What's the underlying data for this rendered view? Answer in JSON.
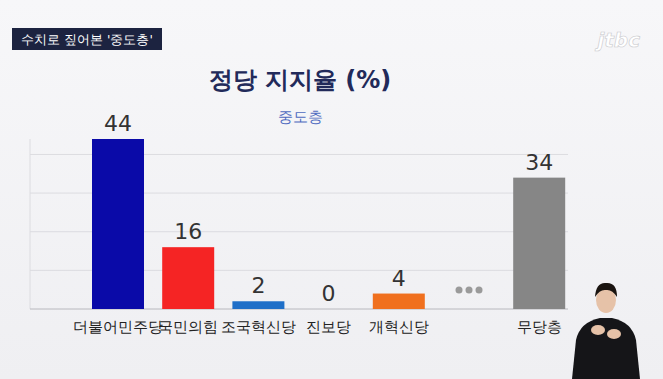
{
  "header": "수치로 짚어본 '중도층'",
  "logo": "jtbc",
  "chart_data": {
    "type": "bar",
    "title": "정당 지지율 (%)",
    "subtitle": "중도층",
    "categories": [
      "더불어민주당",
      "국민의힘",
      "조국혁신당",
      "진보당",
      "개혁신당",
      null,
      "무당층"
    ],
    "values": [
      44,
      16,
      2,
      0,
      4,
      null,
      34
    ],
    "colors": [
      "#0a0aa8",
      "#f52424",
      "#1f6fc8",
      "#d6001c",
      "#f0701e",
      "#9a9a9a",
      "#868686"
    ],
    "ylim": [
      0,
      44
    ],
    "yticks": [
      0,
      10,
      20,
      30,
      40
    ],
    "grid": true,
    "data_labels": true,
    "tick_labels": false
  }
}
